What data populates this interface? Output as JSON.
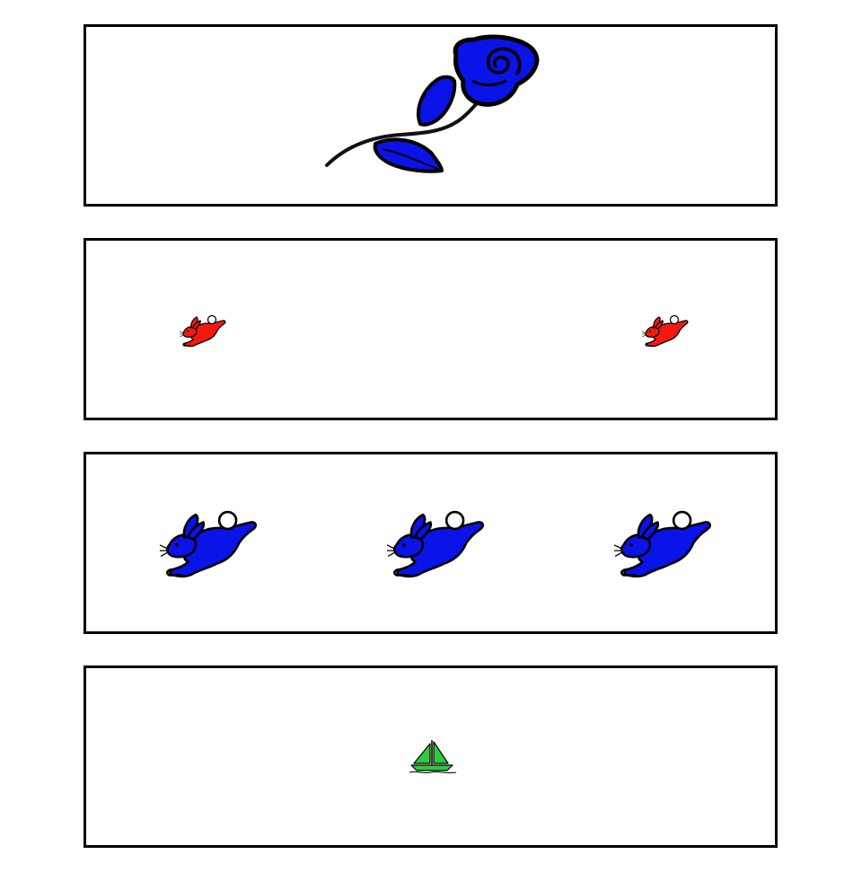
{
  "panels": [
    {
      "contents": [
        {
          "icon": "rose-icon",
          "count": 1,
          "color": "#0a14e8"
        }
      ]
    },
    {
      "contents": [
        {
          "icon": "rabbit-icon",
          "count": 2,
          "color": "#f21a0f",
          "size": "small"
        }
      ]
    },
    {
      "contents": [
        {
          "icon": "rabbit-icon",
          "count": 3,
          "color": "#0a14e8",
          "size": "large"
        }
      ]
    },
    {
      "contents": [
        {
          "icon": "sailboat-icon",
          "count": 1,
          "color": "#2ecc3a",
          "size": "small"
        }
      ]
    }
  ]
}
